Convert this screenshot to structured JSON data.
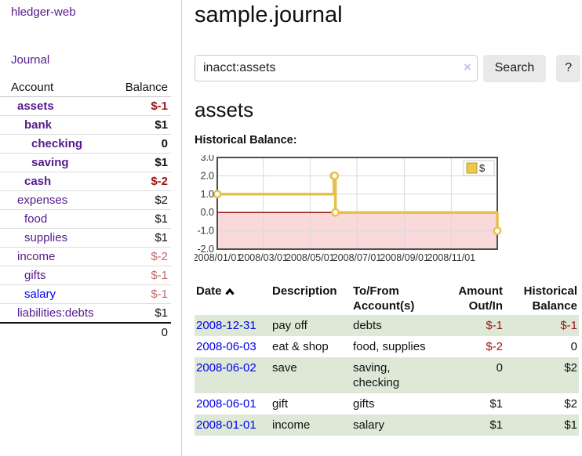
{
  "sidebar": {
    "app_title": "hledger-web",
    "nav": {
      "journal_label": "Journal"
    },
    "accounts_table": {
      "headers": {
        "account": "Account",
        "balance": "Balance"
      },
      "rows": [
        {
          "name": "assets",
          "level": 1,
          "bold": true,
          "blue": false,
          "balance": "$-1",
          "style": "neg-strong"
        },
        {
          "name": "bank",
          "level": 2,
          "bold": true,
          "blue": false,
          "balance": "$1",
          "style": "pos"
        },
        {
          "name": "checking",
          "level": 3,
          "bold": true,
          "blue": false,
          "balance": "0",
          "style": "pos"
        },
        {
          "name": "saving",
          "level": 3,
          "bold": true,
          "blue": false,
          "balance": "$1",
          "style": "pos"
        },
        {
          "name": "cash",
          "level": 2,
          "bold": true,
          "blue": false,
          "balance": "$-2",
          "style": "neg-strong"
        },
        {
          "name": "expenses",
          "level": 1,
          "bold": false,
          "blue": false,
          "balance": "$2",
          "style": "pos"
        },
        {
          "name": "food",
          "level": 2,
          "bold": false,
          "blue": false,
          "balance": "$1",
          "style": "pos"
        },
        {
          "name": "supplies",
          "level": 2,
          "bold": false,
          "blue": false,
          "balance": "$1",
          "style": "pos"
        },
        {
          "name": "income",
          "level": 1,
          "bold": false,
          "blue": false,
          "balance": "$-2",
          "style": "neg-soft"
        },
        {
          "name": "gifts",
          "level": 2,
          "bold": false,
          "blue": false,
          "balance": "$-1",
          "style": "neg-soft"
        },
        {
          "name": "salary",
          "level": 2,
          "bold": false,
          "blue": true,
          "balance": "$-1",
          "style": "neg-soft"
        },
        {
          "name": "liabilities:debts",
          "level": 1,
          "bold": false,
          "blue": false,
          "balance": "$1",
          "style": "pos"
        }
      ],
      "total": "0"
    }
  },
  "main": {
    "title": "sample.journal",
    "search": {
      "value": "inacct:assets",
      "clear_icon": "×",
      "search_label": "Search",
      "help_label": "?"
    },
    "section_title": "assets",
    "chart_label": "Historical Balance:"
  },
  "chart_data": {
    "type": "line",
    "title": "Historical Balance",
    "step": true,
    "series": [
      {
        "name": "$",
        "points": [
          [
            "2008-01-01",
            1
          ],
          [
            "2008-06-01",
            2
          ],
          [
            "2008-06-02",
            2
          ],
          [
            "2008-06-03",
            0
          ],
          [
            "2008-12-31",
            -1
          ]
        ]
      }
    ],
    "xlim": [
      "2008-01-01",
      "2008-12-31"
    ],
    "ylim": [
      -2,
      3
    ],
    "ytick_labels": [
      "3.0",
      "2.0",
      "1.0",
      "0.0",
      "-1.0",
      "-2.0"
    ],
    "yticks": [
      3,
      2,
      1,
      0,
      -1,
      -2
    ],
    "xticks": [
      {
        "date": "2008-01-01",
        "label": "2008/01/01"
      },
      {
        "date": "2008-03-01",
        "label": "2008/03/01"
      },
      {
        "date": "2008-05-01",
        "label": "2008/05/01"
      },
      {
        "date": "2008-07-01",
        "label": "2008/07/01"
      },
      {
        "date": "2008-09-01",
        "label": "2008/09/01"
      },
      {
        "date": "2008-11-01",
        "label": "2008/11/01"
      }
    ],
    "legend": {
      "position": "top-right",
      "label": "$"
    },
    "grid": true,
    "colors": {
      "line": "#e7c04c",
      "marker_fill": "#ffffff",
      "negative_fill": "#f9d9d9",
      "zero_line": "#8b0000",
      "grid": "#d9d9d9",
      "border": "#4d4d4d",
      "legend_fill": "#ecc84f",
      "legend_border": "#b89b30"
    }
  },
  "transactions": {
    "headers": {
      "date": "Date",
      "description": "Description",
      "accounts": "To/From Account(s)",
      "amount": "Amount Out/In",
      "balance": "Historical Balance"
    },
    "rows": [
      {
        "date": "2008-12-31",
        "description": "pay off",
        "accounts": "debts",
        "amount": "$-1",
        "amount_neg": true,
        "balance": "$-1",
        "balance_neg": true,
        "shade": true
      },
      {
        "date": "2008-06-03",
        "description": "eat & shop",
        "accounts": "food, supplies",
        "amount": "$-2",
        "amount_neg": true,
        "balance": "0",
        "balance_neg": false,
        "shade": false
      },
      {
        "date": "2008-06-02",
        "description": "save",
        "accounts": "saving,\nchecking",
        "amount": "0",
        "amount_neg": false,
        "balance": "$2",
        "balance_neg": false,
        "shade": true
      },
      {
        "date": "2008-06-01",
        "description": "gift",
        "accounts": "gifts",
        "amount": "$1",
        "amount_neg": false,
        "balance": "$2",
        "balance_neg": false,
        "shade": false
      },
      {
        "date": "2008-01-01",
        "description": "income",
        "accounts": "salary",
        "amount": "$1",
        "amount_neg": false,
        "balance": "$1",
        "balance_neg": false,
        "shade": true
      }
    ]
  },
  "colors": {
    "link_purple": "#551a8b",
    "link_blue": "#0000ee",
    "negative_strong": "#9d1414",
    "negative_soft": "#bf6a6a",
    "row_shade_green": "#dde9d6"
  }
}
